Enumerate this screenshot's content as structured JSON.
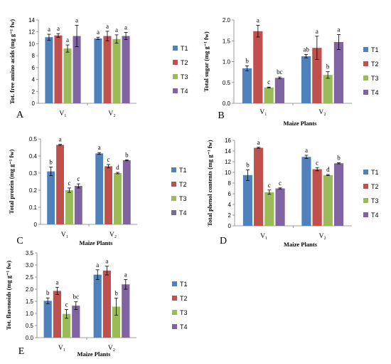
{
  "colors": {
    "T1": "#4f81bd",
    "T2": "#c0504d",
    "T3": "#9bbb59",
    "T4": "#8064a2"
  },
  "chart_data": [
    {
      "type": "bar",
      "panel": "A",
      "ylabel": "Tot. free amino acids (mg g⁻¹ fw)",
      "xlabel": "",
      "ylim": [
        0,
        14
      ],
      "yticks": [
        "0",
        "2",
        "4",
        "6",
        "8",
        "10",
        "12",
        "14"
      ],
      "categories": [
        "V₁",
        "V₂"
      ],
      "series": [
        {
          "name": "T1",
          "values": [
            11.1,
            10.9
          ],
          "errors": [
            0.5,
            0.2
          ],
          "letters": [
            "a",
            "a"
          ]
        },
        {
          "name": "T2",
          "values": [
            11.4,
            11.3
          ],
          "errors": [
            0.3,
            0.8
          ],
          "letters": [
            "a",
            "a"
          ]
        },
        {
          "name": "T3",
          "values": [
            9.2,
            10.8
          ],
          "errors": [
            0.6,
            0.7
          ],
          "letters": [
            "a",
            "a"
          ]
        },
        {
          "name": "T4",
          "values": [
            11.3,
            11.3
          ],
          "errors": [
            1.8,
            0.6
          ],
          "letters": [
            "a",
            "a"
          ]
        }
      ]
    },
    {
      "type": "bar",
      "panel": "B",
      "ylabel": "Total sugar (mg g⁻¹ fw)",
      "xlabel": "Maize Plants",
      "ylim": [
        0,
        2.0
      ],
      "yticks": [
        "0.0",
        "0.5",
        "1.0",
        "1.5",
        "2.0"
      ],
      "categories": [
        "V₁",
        "V₂"
      ],
      "series": [
        {
          "name": "T1",
          "values": [
            0.84,
            1.13
          ],
          "errors": [
            0.06,
            0.04
          ],
          "letters": [
            "b",
            "ab"
          ]
        },
        {
          "name": "T2",
          "values": [
            1.73,
            1.33
          ],
          "errors": [
            0.14,
            0.28
          ],
          "letters": [
            "a",
            "a"
          ]
        },
        {
          "name": "T3",
          "values": [
            0.38,
            0.68
          ],
          "errors": [
            0.01,
            0.08
          ],
          "letters": [
            "c",
            "b"
          ]
        },
        {
          "name": "T4",
          "values": [
            0.61,
            1.47
          ],
          "errors": [
            0.02,
            0.18
          ],
          "letters": [
            "bc",
            "a"
          ]
        }
      ]
    },
    {
      "type": "bar",
      "panel": "C",
      "ylabel": "Total protein (mg g⁻¹ fw)",
      "xlabel": "Maize Plants",
      "ylim": [
        0,
        0.5
      ],
      "yticks": [
        "0",
        "0.1",
        "0.2",
        "0.3",
        "0.4",
        "0.5"
      ],
      "categories": [
        "V₁",
        "V₂"
      ],
      "series": [
        {
          "name": "T1",
          "values": [
            0.31,
            0.415
          ],
          "errors": [
            0.025,
            0.005
          ],
          "letters": [
            "b",
            "a"
          ]
        },
        {
          "name": "T2",
          "values": [
            0.465,
            0.34
          ],
          "errors": [
            0.003,
            0.01
          ],
          "letters": [
            "a",
            "c"
          ]
        },
        {
          "name": "T3",
          "values": [
            0.2,
            0.3
          ],
          "errors": [
            0.013,
            0.004
          ],
          "letters": [
            "c",
            "d"
          ]
        },
        {
          "name": "T4",
          "values": [
            0.225,
            0.375
          ],
          "errors": [
            0.012,
            0.003
          ],
          "letters": [
            "c",
            "b"
          ]
        }
      ]
    },
    {
      "type": "bar",
      "panel": "D",
      "ylabel": "Total phenol contents (mg g⁻¹ fw)",
      "xlabel": "Maize Plants",
      "ylim": [
        0,
        16
      ],
      "yticks": [
        "0",
        "2",
        "4",
        "6",
        "8",
        "10",
        "12",
        "14",
        "16"
      ],
      "categories": [
        "V₁",
        "V₂"
      ],
      "series": [
        {
          "name": "T1",
          "values": [
            9.5,
            12.9
          ],
          "errors": [
            1.0,
            0.3
          ],
          "letters": [
            "b",
            "a"
          ]
        },
        {
          "name": "T2",
          "values": [
            14.6,
            10.6
          ],
          "errors": [
            0.1,
            0.3
          ],
          "letters": [
            "a",
            "c"
          ]
        },
        {
          "name": "T3",
          "values": [
            6.3,
            9.5
          ],
          "errors": [
            0.4,
            0.1
          ],
          "letters": [
            "c",
            "d"
          ]
        },
        {
          "name": "T4",
          "values": [
            7.0,
            11.7
          ],
          "errors": [
            0.1,
            0.1
          ],
          "letters": [
            "c",
            "b"
          ]
        }
      ]
    },
    {
      "type": "bar",
      "panel": "E",
      "ylabel": "Tot. flavonoids (mg g⁻¹ fw)",
      "xlabel": "Maize Plants",
      "ylim": [
        0,
        3.5
      ],
      "yticks": [
        "0.0",
        "0.5",
        "1.0",
        "1.5",
        "2.0",
        "2.5",
        "3.0",
        "3.5"
      ],
      "categories": [
        "V₁",
        "V₂"
      ],
      "series": [
        {
          "name": "T1",
          "values": [
            1.52,
            2.6
          ],
          "errors": [
            0.12,
            0.2
          ],
          "letters": [
            "b",
            "a"
          ]
        },
        {
          "name": "T2",
          "values": [
            1.93,
            2.77
          ],
          "errors": [
            0.15,
            0.18
          ],
          "letters": [
            "a",
            "a"
          ]
        },
        {
          "name": "T3",
          "values": [
            0.98,
            1.28
          ],
          "errors": [
            0.18,
            0.35
          ],
          "letters": [
            "c",
            "b"
          ]
        },
        {
          "name": "T4",
          "values": [
            1.32,
            2.2
          ],
          "errors": [
            0.16,
            0.2
          ],
          "letters": [
            "bc",
            "a"
          ]
        }
      ]
    }
  ]
}
